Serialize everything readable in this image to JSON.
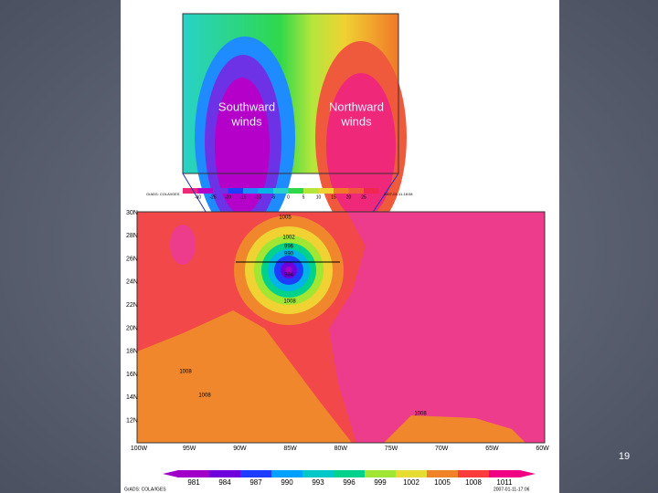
{
  "upper_panel": {
    "labels": [
      "Southward",
      "winds",
      "Northward",
      "winds"
    ],
    "colorbar_labels": [
      "-30",
      "-25",
      "-20",
      "-15",
      "-10",
      "-5",
      "0",
      "5",
      "10",
      "15",
      "20",
      "25"
    ],
    "credit": "GrADS: COLA/IGES",
    "timestamp": "2007-01-11-18:08"
  },
  "lower_panel": {
    "lat_labels": [
      "30N",
      "28N",
      "26N",
      "24N",
      "22N",
      "20N",
      "18N",
      "16N",
      "14N",
      "12N"
    ],
    "lon_labels": [
      "100W",
      "95W",
      "90W",
      "85W",
      "80W",
      "75W",
      "70W",
      "65W",
      "60W"
    ],
    "contour_labels": [
      "1005",
      "1002",
      "996",
      "990",
      "984",
      "1008",
      "1008",
      "1008",
      "1008"
    ],
    "colorbar_labels": [
      "981",
      "984",
      "987",
      "990",
      "993",
      "996",
      "999",
      "1002",
      "1005",
      "1008",
      "1011"
    ],
    "credit": "GrADS: COLA/IGES",
    "timestamp": "2007-01-11-17:06"
  },
  "slide": {
    "page_number": "19"
  }
}
